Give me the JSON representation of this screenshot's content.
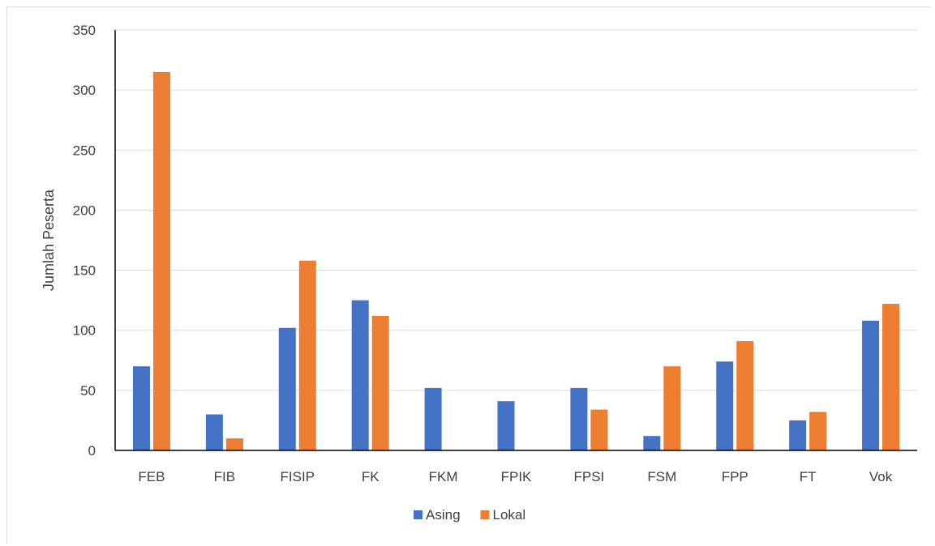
{
  "chart_data": {
    "type": "bar",
    "title": "",
    "xlabel": "",
    "ylabel": "Jumlah Peserta",
    "ylim": [
      0,
      350
    ],
    "yticks": [
      0,
      50,
      100,
      150,
      200,
      250,
      300,
      350
    ],
    "grid": true,
    "legend_position": "bottom",
    "categories": [
      "FEB",
      "FIB",
      "FISIP",
      "FK",
      "FKM",
      "FPIK",
      "FPSI",
      "FSM",
      "FPP",
      "FT",
      "Vok"
    ],
    "series": [
      {
        "name": "Asing",
        "color": "#4472C4",
        "values": [
          70,
          30,
          102,
          125,
          52,
          41,
          52,
          12,
          74,
          25,
          108
        ]
      },
      {
        "name": "Lokal",
        "color": "#ED7D31",
        "values": [
          315,
          10,
          158,
          112,
          0,
          0,
          34,
          70,
          91,
          32,
          122
        ]
      }
    ]
  }
}
